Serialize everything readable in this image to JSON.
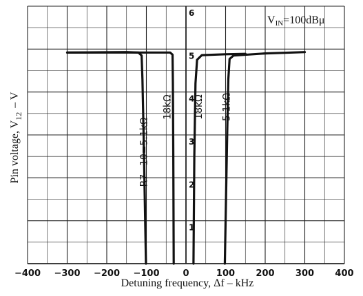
{
  "chart_data": {
    "type": "line",
    "title": "",
    "xlabel": "Detuning frequency, Δf  –  kHz",
    "ylabel_main": "Pin voltage, V",
    "ylabel_sub": "12",
    "ylabel_unit": "–  V",
    "xlim": [
      -400,
      400
    ],
    "ylim": [
      0,
      6
    ],
    "grid": true,
    "x_ticks": [
      -400,
      -300,
      -200,
      -100,
      0,
      100,
      200,
      300,
      400
    ],
    "x_tick_labels": [
      "−400",
      "−300",
      "−200",
      "−100",
      "0",
      "100",
      "200",
      "300",
      "400"
    ],
    "y_ticks": [
      1,
      2,
      3,
      4,
      5,
      6
    ],
    "y_tick_labels": [
      "1",
      "2",
      "3",
      "4",
      "5",
      "6"
    ],
    "annotation": {
      "main": "V",
      "sub": "IN",
      "rest": "=100dBμ"
    },
    "series": [
      {
        "label": "R7−10=5.1kΩ",
        "side": "left",
        "points": [
          [
            -300,
            4.92
          ],
          [
            -150,
            4.93
          ],
          [
            -120,
            4.92
          ],
          [
            -112,
            4.85
          ],
          [
            -110,
            4.3
          ],
          [
            -107,
            3.0
          ],
          [
            -104,
            1.5
          ],
          [
            -101,
            0
          ]
        ]
      },
      {
        "label": "18kΩ",
        "side": "left",
        "points": [
          [
            -300,
            4.92
          ],
          [
            -100,
            4.92
          ],
          [
            -40,
            4.92
          ],
          [
            -34,
            4.87
          ],
          [
            -33,
            4.2
          ],
          [
            -32,
            2.5
          ],
          [
            -31,
            0
          ]
        ]
      },
      {
        "label": "18kΩ",
        "side": "right",
        "points": [
          [
            19,
            0
          ],
          [
            21,
            2.5
          ],
          [
            24,
            4.2
          ],
          [
            28,
            4.75
          ],
          [
            40,
            4.86
          ],
          [
            100,
            4.88
          ],
          [
            150,
            4.89
          ]
        ]
      },
      {
        "label": "5.1kΩ",
        "side": "right",
        "points": [
          [
            98,
            0
          ],
          [
            101,
            1.5
          ],
          [
            104,
            3.0
          ],
          [
            107,
            4.3
          ],
          [
            110,
            4.77
          ],
          [
            120,
            4.85
          ],
          [
            200,
            4.9
          ],
          [
            300,
            4.93
          ]
        ]
      }
    ]
  }
}
